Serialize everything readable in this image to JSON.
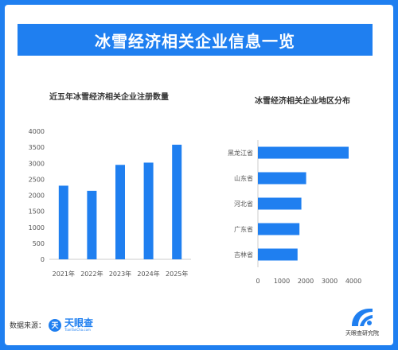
{
  "header": {
    "title": "冰雪经济相关企业信息一览"
  },
  "footer": {
    "source_label": "数据来源：",
    "logo_name": "天眼查",
    "logo_url": "TianYanCha.com",
    "institute_name": "天眼查研究院"
  },
  "colors": {
    "accent": "#1f7ff0",
    "bar": "#1f7ff0",
    "axis": "#cccccc"
  },
  "chart_data": [
    {
      "type": "bar",
      "title": "近五年冰雪经济相关企业注册数量",
      "categories": [
        "2021年",
        "2022年",
        "2023年",
        "2024年",
        "2025年"
      ],
      "values": [
        2300,
        2140,
        2950,
        3020,
        3580
      ],
      "ylim": [
        0,
        4000
      ],
      "yticks": [
        0,
        500,
        1000,
        1500,
        2000,
        2500,
        3000,
        3500,
        4000
      ],
      "xlabel": "",
      "ylabel": "",
      "grid": false
    },
    {
      "type": "bar",
      "orientation": "horizontal",
      "title": "冰雪经济相关企业地区分布",
      "categories": [
        "黑龙江省",
        "山东省",
        "河北省",
        "广东省",
        "吉林省"
      ],
      "values": [
        3800,
        2020,
        1820,
        1740,
        1660
      ],
      "xlim": [
        0,
        4000
      ],
      "xticks": [
        0,
        1000,
        2000,
        3000,
        4000
      ],
      "xlabel": "",
      "ylabel": "",
      "grid": false
    }
  ]
}
